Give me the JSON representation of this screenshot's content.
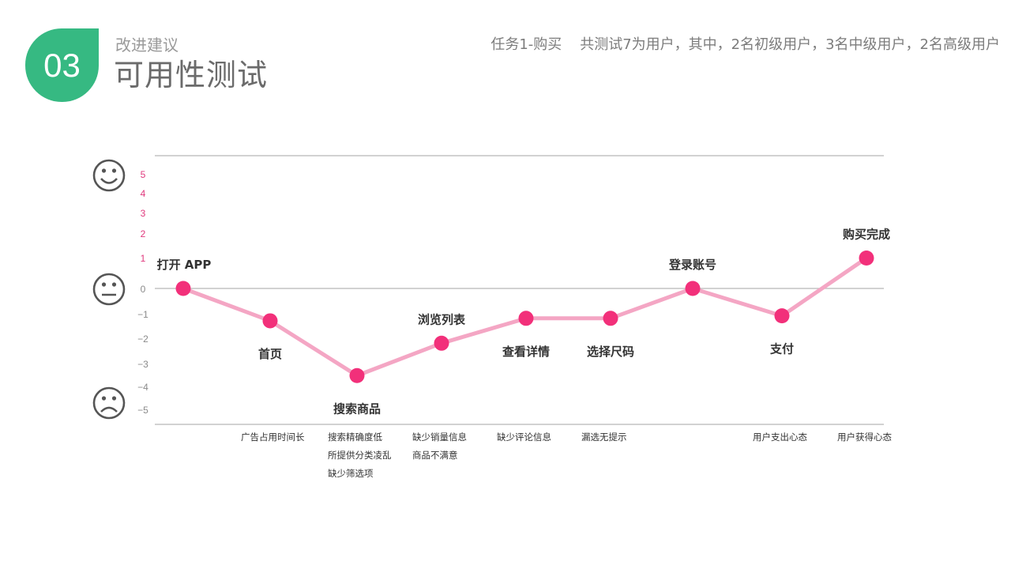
{
  "header": {
    "number": "03",
    "subtitle": "改进建议",
    "title": "可用性测试",
    "note": "任务1-购买    共测试7为用户，其中，2名初级用户，3名中级用户，2名高级用户"
  },
  "colors": {
    "accent": "#36b982",
    "line": "#f4a6c4",
    "point": "#f2307a",
    "pos_tick": "#e0397d",
    "neg_tick": "#8a8a8a",
    "axis": "#b8b8b8"
  },
  "icons": {
    "top": "smiley-icon",
    "middle": "neutral-face-icon",
    "bottom": "sad-face-icon"
  },
  "chart_data": {
    "type": "line",
    "ylim": [
      -5,
      5
    ],
    "yticks_positive": [
      "5",
      "4",
      "3",
      "2",
      "1"
    ],
    "yticks_zero": [
      "0"
    ],
    "yticks_negative": [
      "−1",
      "−2",
      "−3",
      "−4",
      "−5"
    ],
    "points": [
      {
        "label": "打开 APP",
        "value": 0,
        "issues": []
      },
      {
        "label": "首页",
        "value": -1.3,
        "issues": [
          "广告占用时间长"
        ]
      },
      {
        "label": "搜索商品",
        "value": -3.5,
        "issues": [
          "搜索精确度低",
          "所提供分类凌乱",
          "缺少筛选项"
        ]
      },
      {
        "label": "浏览列表",
        "value": -2.2,
        "issues": [
          "缺少销量信息",
          "商品不满意"
        ]
      },
      {
        "label": "查看详情",
        "value": -1.2,
        "issues": [
          "缺少评论信息"
        ]
      },
      {
        "label": "选择尺码",
        "value": -1.2,
        "issues": [
          "漏选无提示"
        ]
      },
      {
        "label": "登录账号",
        "value": 0,
        "issues": []
      },
      {
        "label": "支付",
        "value": -1.1,
        "issues": [
          "用户支出心态"
        ]
      },
      {
        "label": "购买完成",
        "value": 1,
        "issues": [
          "用户获得心态"
        ]
      }
    ]
  }
}
